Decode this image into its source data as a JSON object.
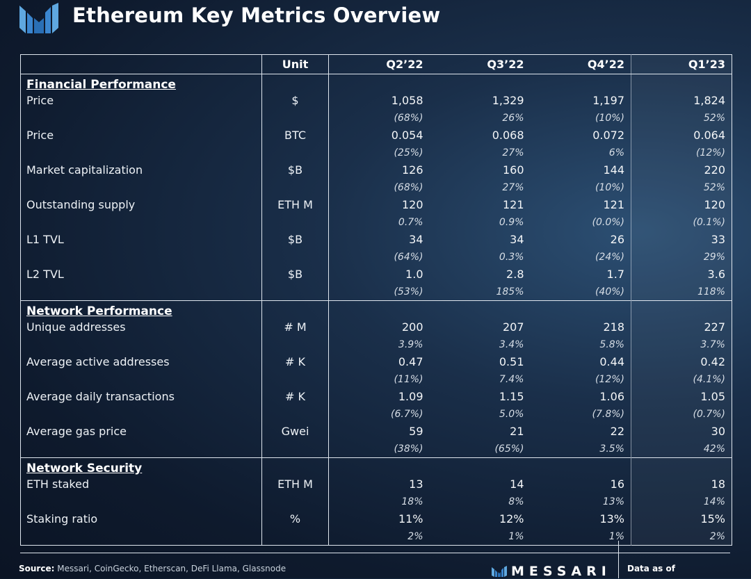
{
  "title": "Ethereum Key Metrics Overview",
  "brand_colors": {
    "logo_light": "#5fa8e0",
    "logo_dark": "#2a6fb5"
  },
  "chart_data": {
    "type": "table",
    "columns": [
      "",
      "Unit",
      "Q2’22",
      "Q3’22",
      "Q4’22",
      "Q1’23"
    ],
    "sections": [
      {
        "name": "Financial Performance",
        "rows": [
          {
            "label": "Price",
            "unit": "$",
            "values": [
              "1,058",
              "1,329",
              "1,197",
              "1,824"
            ],
            "changes": [
              "(68%)",
              "26%",
              "(10%)",
              "52%"
            ]
          },
          {
            "label": "Price",
            "unit": "BTC",
            "values": [
              "0.054",
              "0.068",
              "0.072",
              "0.064"
            ],
            "changes": [
              "(25%)",
              "27%",
              "6%",
              "(12%)"
            ]
          },
          {
            "label": "Market capitalization",
            "unit": "$B",
            "values": [
              "126",
              "160",
              "144",
              "220"
            ],
            "changes": [
              "(68%)",
              "27%",
              "(10%)",
              "52%"
            ]
          },
          {
            "label": "Outstanding supply",
            "unit": "ETH M",
            "values": [
              "120",
              "121",
              "121",
              "120"
            ],
            "changes": [
              "0.7%",
              "0.9%",
              "(0.0%)",
              "(0.1%)"
            ]
          },
          {
            "label": "L1 TVL",
            "unit": "$B",
            "values": [
              "34",
              "34",
              "26",
              "33"
            ],
            "changes": [
              "(64%)",
              "0.3%",
              "(24%)",
              "29%"
            ]
          },
          {
            "label": "L2 TVL",
            "unit": "$B",
            "values": [
              "1.0",
              "2.8",
              "1.7",
              "3.6"
            ],
            "changes": [
              "(53%)",
              "185%",
              "(40%)",
              "118%"
            ]
          }
        ]
      },
      {
        "name": "Network Performance",
        "rows": [
          {
            "label": "Unique addresses",
            "unit": "# M",
            "values": [
              "200",
              "207",
              "218",
              "227"
            ],
            "changes": [
              "3.9%",
              "3.4%",
              "5.8%",
              "3.7%"
            ]
          },
          {
            "label": "Average active addresses",
            "unit": "# K",
            "values": [
              "0.47",
              "0.51",
              "0.44",
              "0.42"
            ],
            "changes": [
              "(11%)",
              "7.4%",
              "(12%)",
              "(4.1%)"
            ]
          },
          {
            "label": "Average daily transactions",
            "unit": "# K",
            "values": [
              "1.09",
              "1.15",
              "1.06",
              "1.05"
            ],
            "changes": [
              "(6.7%)",
              "5.0%",
              "(7.8%)",
              "(0.7%)"
            ]
          },
          {
            "label": "Average gas price",
            "unit": "Gwei",
            "values": [
              "59",
              "21",
              "22",
              "30"
            ],
            "changes": [
              "(38%)",
              "(65%)",
              "3.5%",
              "42%"
            ]
          }
        ]
      },
      {
        "name": "Network Security",
        "rows": [
          {
            "label": "ETH staked",
            "unit": "ETH M",
            "values": [
              "13",
              "14",
              "16",
              "18"
            ],
            "changes": [
              "18%",
              "8%",
              "13%",
              "14%"
            ]
          },
          {
            "label": "Staking ratio",
            "unit": "%",
            "values": [
              "11%",
              "12%",
              "13%",
              "15%"
            ],
            "changes": [
              "2%",
              "1%",
              "1%",
              "2%"
            ]
          }
        ]
      }
    ]
  },
  "footer": {
    "source_label": "Source:",
    "source_text": " Messari, CoinGecko, Etherscan, DeFi Llama, Glassnode",
    "brand": "MESSARI",
    "data_as_of": "Data as of"
  }
}
